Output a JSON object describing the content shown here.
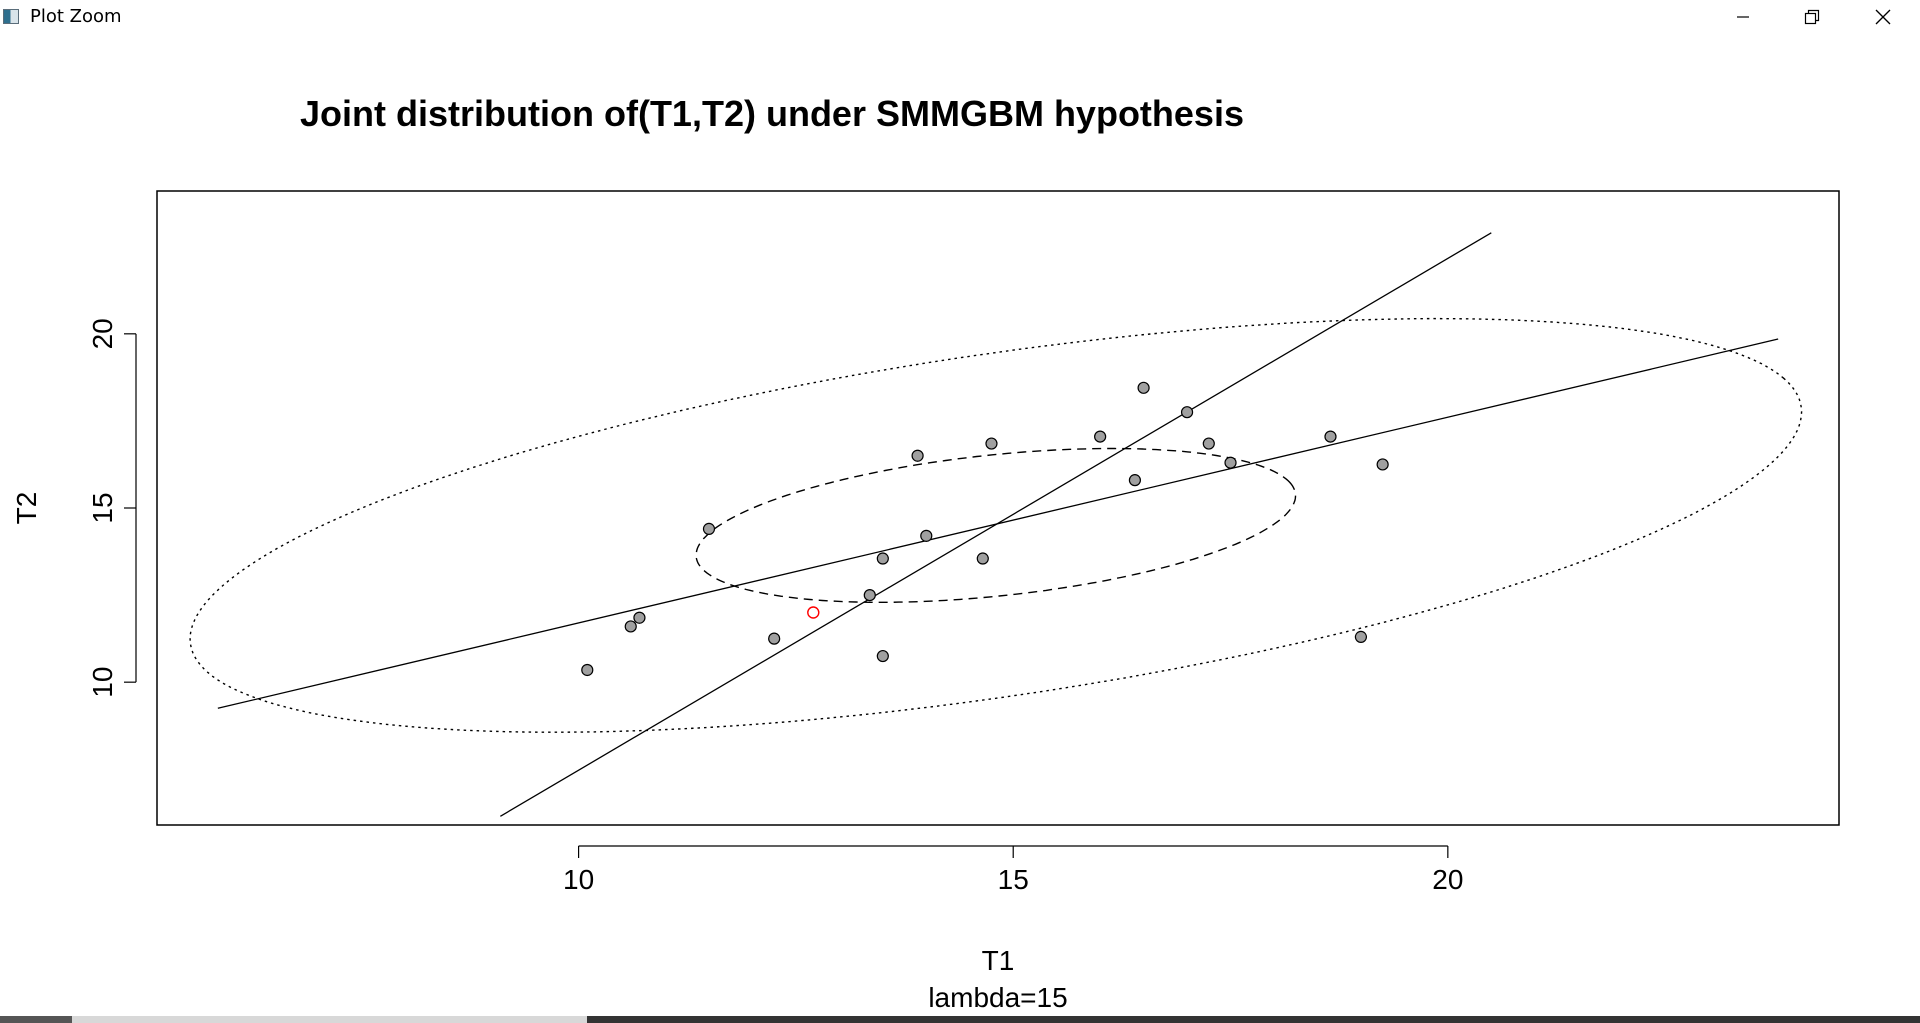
{
  "window": {
    "title": "Plot Zoom",
    "minimize_icon": "minimize-icon",
    "restore_icon": "restore-icon",
    "close_icon": "close-icon"
  },
  "chart_data": {
    "type": "scatter",
    "title": "Joint distribution of(T1,T2) under SMMGBM hypothesis",
    "xlabel": "T1",
    "ylabel": "T2",
    "subtitle": "lambda=15",
    "xlim": [
      5.15,
      24.5
    ],
    "ylim": [
      5.9,
      24.1
    ],
    "xticks": [
      10,
      15,
      20
    ],
    "yticks": [
      10,
      15,
      20
    ],
    "grid": false,
    "legend": "none",
    "points": [
      {
        "x": 10.1,
        "y": 10.35
      },
      {
        "x": 10.6,
        "y": 11.6
      },
      {
        "x": 10.7,
        "y": 11.85
      },
      {
        "x": 11.5,
        "y": 14.4
      },
      {
        "x": 12.25,
        "y": 11.25
      },
      {
        "x": 13.35,
        "y": 12.5
      },
      {
        "x": 13.5,
        "y": 10.75
      },
      {
        "x": 13.5,
        "y": 13.55
      },
      {
        "x": 13.9,
        "y": 16.5
      },
      {
        "x": 14.0,
        "y": 14.2
      },
      {
        "x": 14.65,
        "y": 13.55
      },
      {
        "x": 14.75,
        "y": 16.85
      },
      {
        "x": 16.0,
        "y": 17.05
      },
      {
        "x": 16.4,
        "y": 15.8
      },
      {
        "x": 16.5,
        "y": 18.45
      },
      {
        "x": 17.0,
        "y": 17.75
      },
      {
        "x": 17.25,
        "y": 16.85
      },
      {
        "x": 17.5,
        "y": 16.3
      },
      {
        "x": 18.65,
        "y": 17.05
      },
      {
        "x": 19.0,
        "y": 11.3
      },
      {
        "x": 19.25,
        "y": 16.25
      }
    ],
    "highlight_point": {
      "x": 12.7,
      "y": 12.0,
      "color": "#ff0000"
    },
    "ellipses": [
      {
        "style": "dashed",
        "center": [
          14.8,
          14.5
        ],
        "rx": 3.6,
        "ry": 1.95,
        "rotation_deg": 20
      },
      {
        "style": "dotted",
        "center": [
          14.8,
          14.5
        ],
        "rx": 10.0,
        "ry": 4.6,
        "rotation_deg": 25
      }
    ],
    "lines": [
      {
        "x": [
          5.85,
          23.8
        ],
        "y": [
          9.25,
          19.85
        ]
      },
      {
        "x": [
          9.1,
          20.5
        ],
        "y": [
          6.15,
          22.9
        ]
      }
    ],
    "colors": {
      "point_fill": "#a0a0a0",
      "point_stroke": "#000000",
      "axis": "#000000"
    }
  }
}
